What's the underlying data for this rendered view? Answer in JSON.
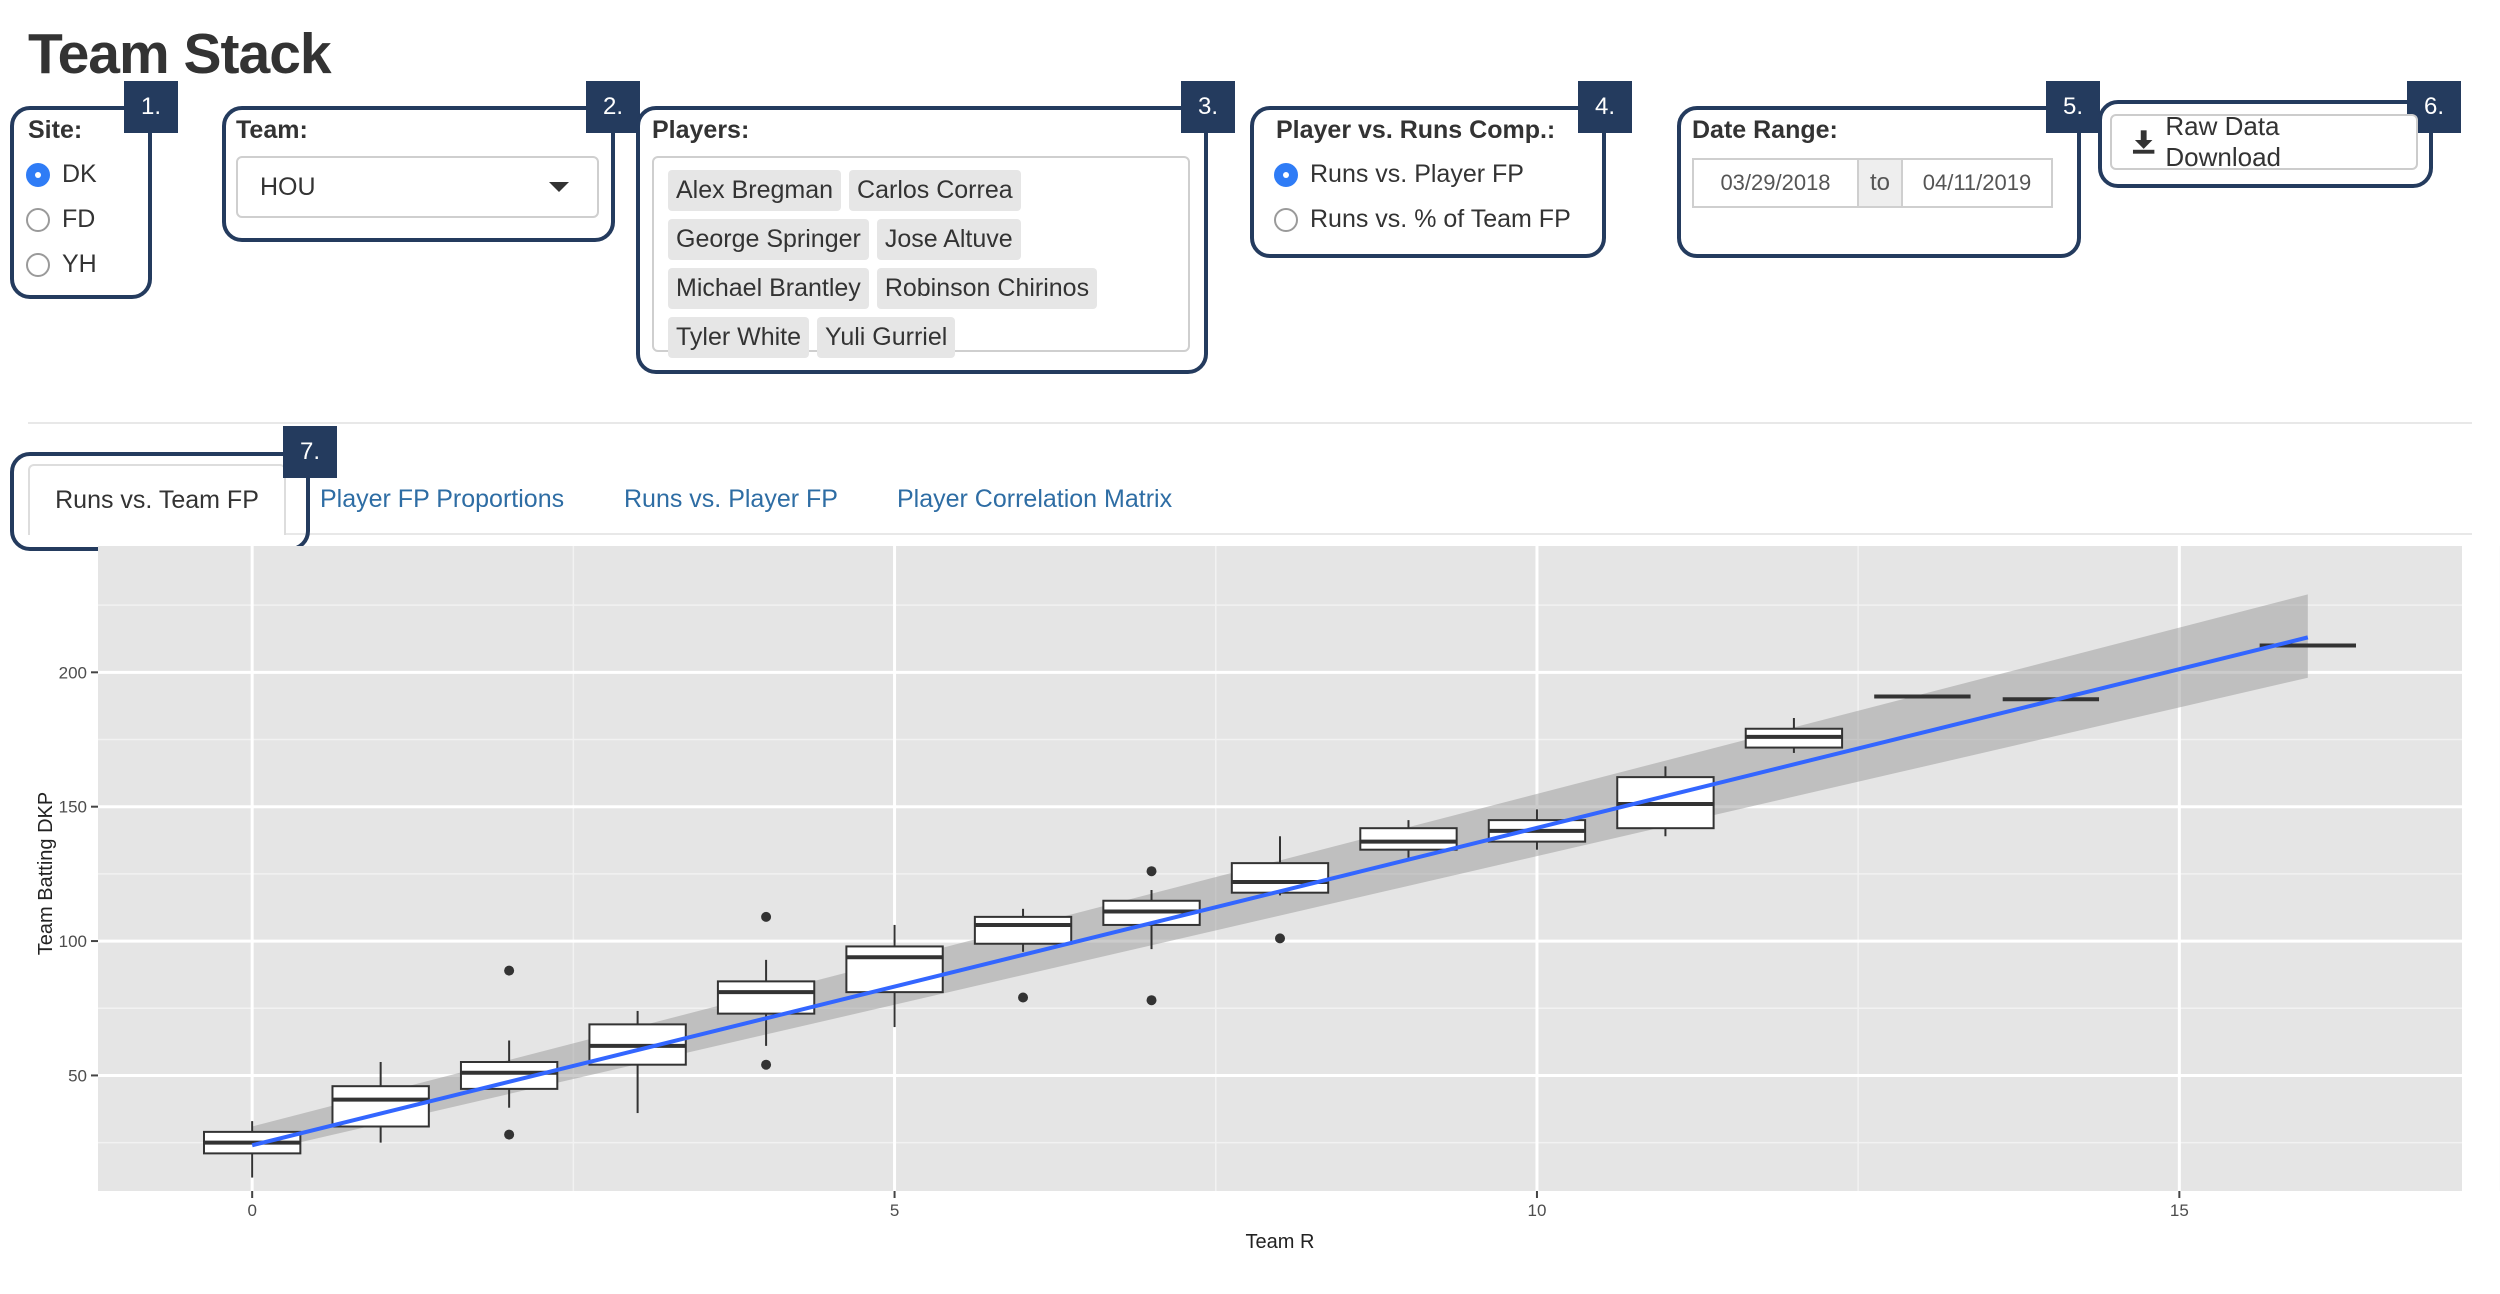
{
  "page_title": "Team Stack",
  "badges": [
    "1.",
    "2.",
    "3.",
    "4.",
    "5.",
    "6.",
    "7."
  ],
  "site": {
    "label": "Site:",
    "options": [
      {
        "label": "DK",
        "selected": true
      },
      {
        "label": "FD",
        "selected": false
      },
      {
        "label": "YH",
        "selected": false
      }
    ]
  },
  "team": {
    "label": "Team:",
    "value": "HOU"
  },
  "players": {
    "label": "Players:",
    "chips": [
      "Alex Bregman",
      "Carlos Correa",
      "George Springer",
      "Jose Altuve",
      "Michael Brantley",
      "Robinson Chirinos",
      "Tyler White",
      "Yuli Gurriel"
    ]
  },
  "comparison": {
    "label": "Player vs. Runs Comp.:",
    "options": [
      {
        "label": "Runs vs. Player FP",
        "selected": true
      },
      {
        "label": "Runs vs. % of Team FP",
        "selected": false
      }
    ]
  },
  "date_range": {
    "label": "Date Range:",
    "start": "03/29/2018",
    "separator": "to",
    "end": "04/11/2019"
  },
  "download": {
    "label": "Raw Data Download",
    "icon": "download-icon"
  },
  "tabs": [
    {
      "label": "Runs vs. Team FP",
      "active": true
    },
    {
      "label": "Player FP Proportions",
      "active": false
    },
    {
      "label": "Runs vs. Player FP",
      "active": false
    },
    {
      "label": "Player Correlation Matrix",
      "active": false
    }
  ],
  "colors": {
    "accent": "#2f7cf6",
    "callout": "#243b5e",
    "link": "#2e6da4",
    "fit_line": "#3366ff",
    "panel": "#e5e5e5"
  },
  "chart_data": {
    "type": "boxplot",
    "xlabel": "Team R",
    "ylabel": "Team Batting DKP",
    "xlim": [
      -1.2,
      17.2
    ],
    "ylim": [
      7,
      247
    ],
    "x_ticks": [
      0,
      5,
      10,
      15
    ],
    "y_ticks": [
      50,
      100,
      150,
      200
    ],
    "grid": true,
    "boxes": [
      {
        "x": 0,
        "min": 12,
        "q1": 21,
        "median": 25,
        "q3": 29,
        "max": 33,
        "outliers": []
      },
      {
        "x": 1,
        "min": 25,
        "q1": 31,
        "median": 41,
        "q3": 46,
        "max": 55,
        "outliers": []
      },
      {
        "x": 2,
        "min": 38,
        "q1": 45,
        "median": 51,
        "q3": 55,
        "max": 63,
        "outliers": [
          89,
          28
        ]
      },
      {
        "x": 3,
        "min": 36,
        "q1": 54,
        "median": 61,
        "q3": 69,
        "max": 74,
        "outliers": []
      },
      {
        "x": 4,
        "min": 61,
        "q1": 73,
        "median": 81,
        "q3": 85,
        "max": 93,
        "outliers": [
          109,
          54
        ]
      },
      {
        "x": 5,
        "min": 68,
        "q1": 81,
        "median": 94,
        "q3": 98,
        "max": 106,
        "outliers": []
      },
      {
        "x": 6,
        "min": 96,
        "q1": 99,
        "median": 106,
        "q3": 109,
        "max": 112,
        "outliers": [
          79
        ]
      },
      {
        "x": 7,
        "min": 97,
        "q1": 106,
        "median": 111,
        "q3": 115,
        "max": 119,
        "outliers": [
          126,
          78
        ]
      },
      {
        "x": 8,
        "min": 117,
        "q1": 118,
        "median": 122,
        "q3": 129,
        "max": 139,
        "outliers": [
          101
        ]
      },
      {
        "x": 9,
        "min": 131,
        "q1": 134,
        "median": 137,
        "q3": 142,
        "max": 145,
        "outliers": []
      },
      {
        "x": 10,
        "min": 134,
        "q1": 137,
        "median": 141,
        "q3": 145,
        "max": 149,
        "outliers": []
      },
      {
        "x": 11,
        "min": 139,
        "q1": 142,
        "median": 151,
        "q3": 161,
        "max": 165,
        "outliers": []
      },
      {
        "x": 12,
        "min": 170,
        "q1": 172,
        "median": 176,
        "q3": 179,
        "max": 183,
        "outliers": []
      },
      {
        "x": 13,
        "min": 191,
        "q1": 191,
        "median": 191,
        "q3": 191,
        "max": 191,
        "outliers": []
      },
      {
        "x": 14,
        "min": 190,
        "q1": 190,
        "median": 190,
        "q3": 190,
        "max": 190,
        "outliers": []
      },
      {
        "x": 16,
        "min": 210,
        "q1": 210,
        "median": 210,
        "q3": 210,
        "max": 210,
        "outliers": []
      }
    ],
    "fit": {
      "x": [
        0,
        16
      ],
      "y": [
        24,
        213
      ],
      "band_lo": [
        21,
        198
      ],
      "band_hi": [
        31,
        229
      ]
    }
  }
}
